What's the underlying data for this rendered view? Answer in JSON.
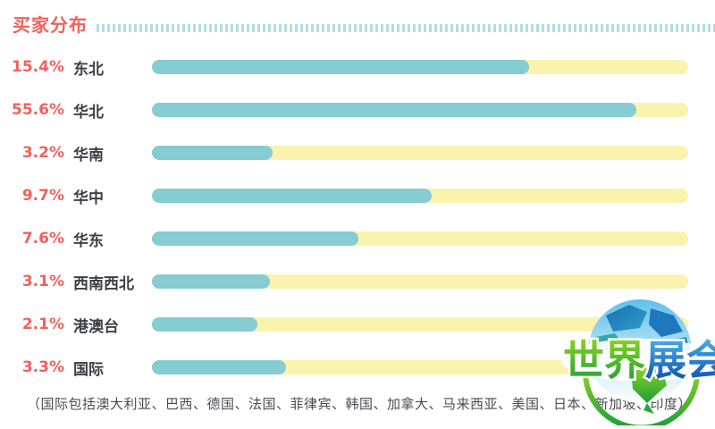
{
  "header": {
    "title": "买家分布"
  },
  "chart_data": {
    "type": "bar",
    "orientation": "horizontal",
    "title": "买家分布",
    "categories": [
      "东北",
      "华北",
      "华南",
      "华中",
      "华东",
      "西南西北",
      "港澳台",
      "国际"
    ],
    "values": [
      15.4,
      55.6,
      3.2,
      9.7,
      7.6,
      3.1,
      2.1,
      3.3
    ],
    "value_labels": [
      "15.4%",
      "55.6%",
      "3.2%",
      "9.7%",
      "7.6%",
      "3.1%",
      "2.1%",
      "3.3%"
    ],
    "bar_fill_fraction_of_track": [
      0.703,
      0.904,
      0.225,
      0.522,
      0.385,
      0.22,
      0.197,
      0.25
    ],
    "bar_color": "#85ccd3",
    "track_color": "#f9f3ae",
    "value_label_color": "#f2605c",
    "category_label_color": "#3e3e47",
    "xlim": [
      0,
      100
    ],
    "grid": "off",
    "legend": "none"
  },
  "footnote": {
    "text": "（国际包括澳大利亚、巴西、德国、法国、菲律宾、韩国、加拿大、马来西亚、美国、日本、新加坡、印度）"
  },
  "logo": {
    "name": "world-expo-logo",
    "text_green": "世界",
    "text_blue": "展会"
  },
  "colors": {
    "accent_red": "#f2605c",
    "bar_teal": "#85ccd3",
    "track_yellow": "#f9f3ae",
    "dash_blue": "#b3dde5",
    "label_dark": "#3e3e47",
    "footnote_gray": "#4b4b55",
    "logo_green": "#3cb53a",
    "logo_blue": "#1565c8"
  }
}
